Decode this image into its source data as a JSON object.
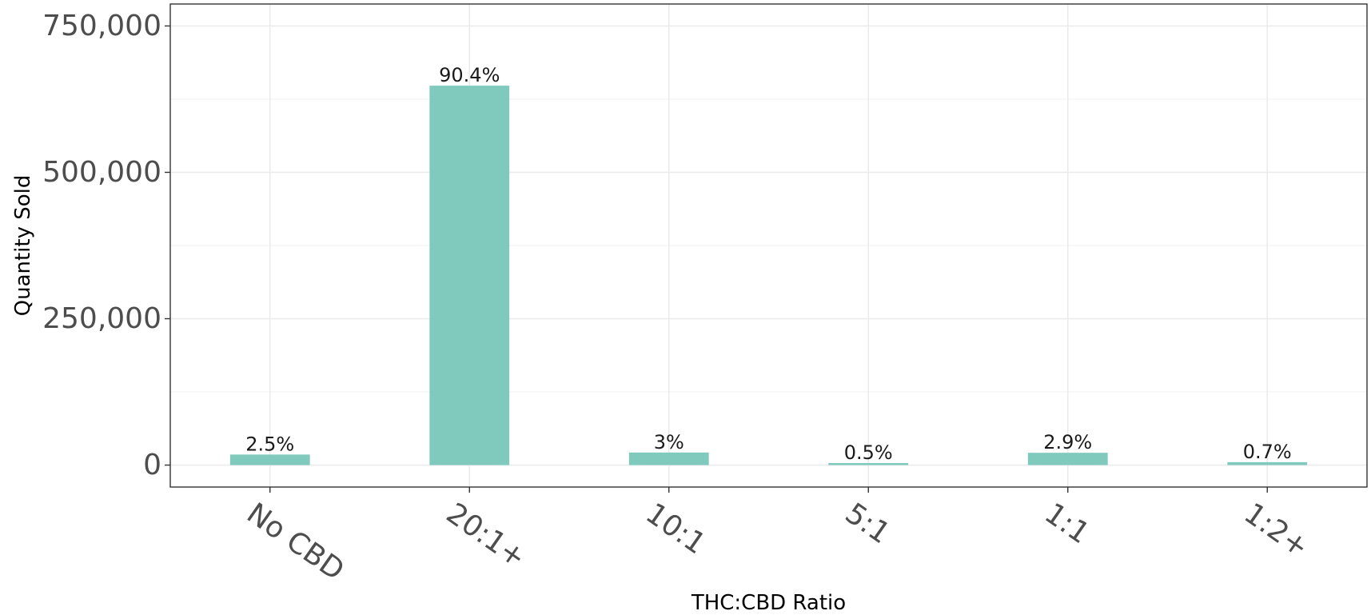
{
  "chart_data": {
    "type": "bar",
    "categories": [
      "No CBD",
      "20:1+",
      "10:1",
      "5:1",
      "1:1",
      "1:2+"
    ],
    "values": [
      18000,
      648000,
      21500,
      3500,
      21000,
      5000
    ],
    "data_labels": [
      "2.5%",
      "90.4%",
      "3%",
      "0.5%",
      "2.9%",
      "0.7%"
    ],
    "title": "",
    "xlabel": "THC:CBD Ratio",
    "ylabel": "Quantity Sold",
    "ylim": [
      -37500,
      787500
    ],
    "y_ticks": [
      0,
      250000,
      500000,
      750000
    ],
    "y_tick_labels": [
      "0",
      "250,000",
      "500,000",
      "750,000"
    ],
    "grid": true,
    "legend": "none",
    "bar_color": "#7fc9bd"
  }
}
